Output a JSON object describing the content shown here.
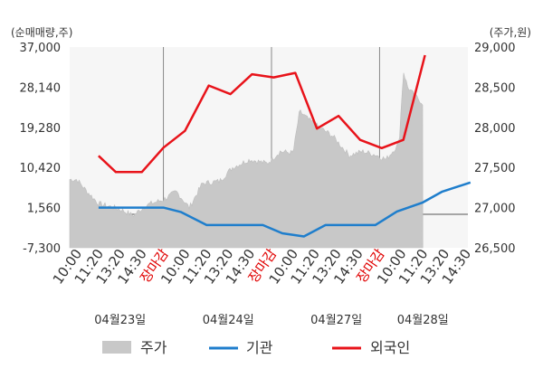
{
  "chart_data": {
    "type": "line",
    "left_unit": "(순매매량,주)",
    "right_unit": "(주가,원)",
    "left_axis": {
      "min": -7300,
      "max": 37000,
      "ticks": [
        "37,000",
        "28,140",
        "19,280",
        "10,420",
        "1,560",
        "-7,300"
      ]
    },
    "right_axis": {
      "min": 26500,
      "max": 29000,
      "ticks": [
        "29,000",
        "28,500",
        "28,000",
        "27,500",
        "27,000",
        "26,500"
      ]
    },
    "x_ticks": [
      "10:00",
      "11:20",
      "13:20",
      "14:30",
      "장마감",
      "10:00",
      "11:20",
      "13:20",
      "14:30",
      "장마감",
      "10:00",
      "11:20",
      "13:20",
      "14:30",
      "장마감",
      "10:00",
      "11:20",
      "13:20",
      "14:30"
    ],
    "x_tick_close_flags": [
      false,
      false,
      false,
      false,
      true,
      false,
      false,
      false,
      false,
      true,
      false,
      false,
      false,
      false,
      true,
      false,
      false,
      false,
      false
    ],
    "dates": [
      "04월23일",
      "04월24일",
      "04월27일",
      "04월28일"
    ],
    "date_tick_index": [
      2,
      7,
      12,
      16
    ],
    "series": [
      {
        "name": "주가",
        "axis": "right",
        "style": "area",
        "color": "#c8c8c8",
        "anchors": [
          [
            0,
            27350
          ],
          [
            0.4,
            27220
          ],
          [
            1,
            27050
          ],
          [
            2,
            26980
          ],
          [
            2.6,
            26900
          ],
          [
            3.2,
            27030
          ],
          [
            4,
            27100
          ],
          [
            4.6,
            27200
          ],
          [
            5.2,
            27000
          ],
          [
            5.8,
            27300
          ],
          [
            6.6,
            27330
          ],
          [
            7.2,
            27500
          ],
          [
            8,
            27600
          ],
          [
            8.8,
            27550
          ],
          [
            9.4,
            27700
          ],
          [
            10,
            27680
          ],
          [
            10.3,
            28200
          ],
          [
            10.7,
            28100
          ],
          [
            11.2,
            28000
          ],
          [
            11.8,
            27900
          ],
          [
            12.6,
            27650
          ],
          [
            13.2,
            27700
          ],
          [
            13.8,
            27660
          ],
          [
            14.3,
            27600
          ],
          [
            14.9,
            27800
          ],
          [
            15.1,
            28700
          ],
          [
            15.3,
            28500
          ],
          [
            15.6,
            28400
          ],
          [
            16.0,
            28300
          ]
        ],
        "end_index": 16.0
      },
      {
        "name": "기관",
        "axis": "left",
        "style": "line",
        "color": "#1f7ecc",
        "points": [
          [
            1,
            1560
          ],
          [
            4,
            1560
          ],
          [
            4.8,
            600
          ],
          [
            6,
            -2300
          ],
          [
            8.6,
            -2300
          ],
          [
            9.5,
            -4100
          ],
          [
            10.5,
            -4800
          ],
          [
            11.5,
            -2300
          ],
          [
            13.8,
            -2300
          ],
          [
            14.8,
            700
          ],
          [
            16,
            2700
          ],
          [
            16.9,
            5100
          ],
          [
            18.2,
            7100
          ]
        ],
        "x_scale_note": ""
      },
      {
        "name": "외국인",
        "axis": "left",
        "style": "line",
        "color": "#e8131a",
        "points": [
          [
            1,
            13000
          ],
          [
            1.8,
            9400
          ],
          [
            3,
            9400
          ],
          [
            4,
            14800
          ],
          [
            5,
            18500
          ],
          [
            6.1,
            28500
          ],
          [
            7.1,
            26600
          ],
          [
            8.1,
            31000
          ],
          [
            9.1,
            30300
          ],
          [
            10.1,
            31300
          ],
          [
            11.1,
            19000
          ],
          [
            12.1,
            21800
          ],
          [
            13.1,
            16500
          ],
          [
            14.1,
            14700
          ],
          [
            15.1,
            16500
          ],
          [
            16.1,
            35200
          ]
        ]
      }
    ],
    "legend": [
      "주가",
      "기관",
      "외국인"
    ],
    "legend_position": "bottom"
  }
}
